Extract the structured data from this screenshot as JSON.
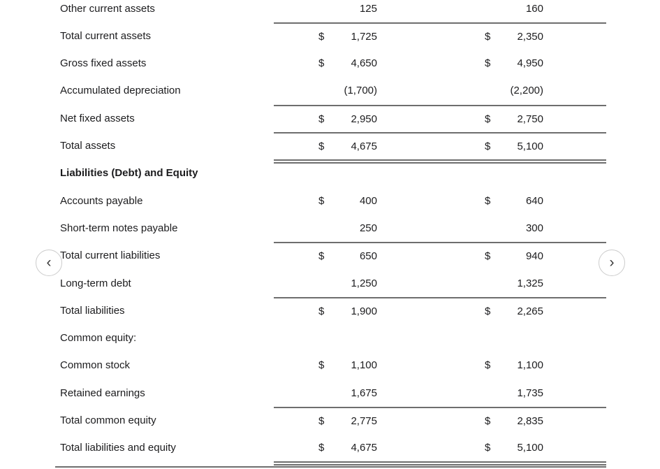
{
  "colors": {
    "rule_line": "#6e6e6e",
    "text": "#1c1c1e",
    "button_border": "#cccccc",
    "background": "#ffffff"
  },
  "nav": {
    "prev_icon": "‹",
    "next_icon": "›"
  },
  "table": {
    "rows": [
      {
        "label": "Other current assets",
        "bold": false,
        "rule": "none",
        "d1": "",
        "v1": "125",
        "d2": "",
        "v2": "160"
      },
      {
        "label": "Total current assets",
        "bold": false,
        "rule": "single",
        "d1": "$",
        "v1": "1,725",
        "d2": "$",
        "v2": "2,350"
      },
      {
        "label": "Gross fixed assets",
        "bold": false,
        "rule": "none",
        "d1": "$",
        "v1": "4,650",
        "d2": "$",
        "v2": "4,950"
      },
      {
        "label": "Accumulated depreciation",
        "bold": false,
        "rule": "none",
        "d1": "",
        "v1": "(1,700)",
        "d2": "",
        "v2": "(2,200)"
      },
      {
        "label": "Net fixed assets",
        "bold": false,
        "rule": "single",
        "d1": "$",
        "v1": "2,950",
        "d2": "$",
        "v2": "2,750"
      },
      {
        "label": "Total assets",
        "bold": false,
        "rule": "single",
        "d1": "$",
        "v1": "4,675",
        "d2": "$",
        "v2": "5,100"
      },
      {
        "label": "Liabilities (Debt) and Equity",
        "bold": true,
        "rule": "double",
        "d1": "",
        "v1": "",
        "d2": "",
        "v2": ""
      },
      {
        "label": "Accounts payable",
        "bold": false,
        "rule": "none",
        "d1": "$",
        "v1": "400",
        "d2": "$",
        "v2": "640"
      },
      {
        "label": "Short-term notes payable",
        "bold": false,
        "rule": "none",
        "d1": "",
        "v1": "250",
        "d2": "",
        "v2": "300"
      },
      {
        "label": "Total current liabilities",
        "bold": false,
        "rule": "single",
        "d1": "$",
        "v1": "650",
        "d2": "$",
        "v2": "940"
      },
      {
        "label": "Long-term debt",
        "bold": false,
        "rule": "none",
        "d1": "",
        "v1": "1,250",
        "d2": "",
        "v2": "1,325"
      },
      {
        "label": "Total liabilities",
        "bold": false,
        "rule": "single",
        "d1": "$",
        "v1": "1,900",
        "d2": "$",
        "v2": "2,265"
      },
      {
        "label": "Common equity:",
        "bold": false,
        "rule": "none",
        "d1": "",
        "v1": "",
        "d2": "",
        "v2": ""
      },
      {
        "label": "Common stock",
        "bold": false,
        "rule": "none",
        "d1": "$",
        "v1": "1,100",
        "d2": "$",
        "v2": "1,100"
      },
      {
        "label": "Retained earnings",
        "bold": false,
        "rule": "none",
        "d1": "",
        "v1": "1,675",
        "d2": "",
        "v2": "1,735"
      },
      {
        "label": "Total common equity",
        "bold": false,
        "rule": "single",
        "d1": "$",
        "v1": "2,775",
        "d2": "$",
        "v2": "2,835"
      },
      {
        "label": "Total liabilities and equity",
        "bold": false,
        "rule": "none",
        "d1": "$",
        "v1": "4,675",
        "d2": "$",
        "v2": "5,100"
      }
    ]
  }
}
